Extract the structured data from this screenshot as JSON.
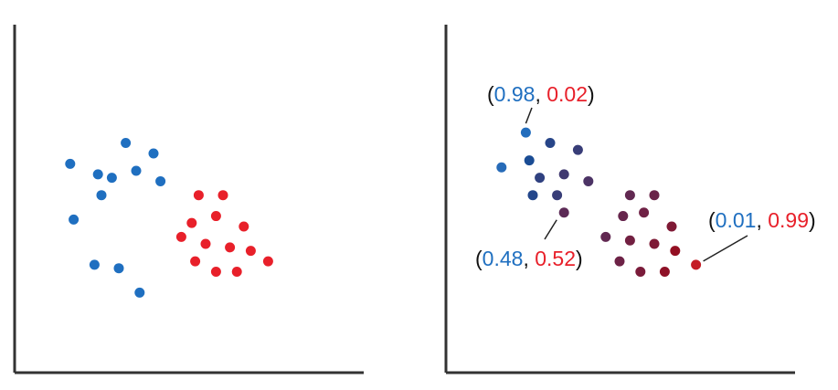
{
  "colors": {
    "blue": "#1f6fc0",
    "red": "#e8202a",
    "axis": "#333333",
    "leader": "#222222"
  },
  "chart_data": [
    {
      "type": "scatter",
      "title": "",
      "xlabel": "",
      "ylabel": "",
      "xlim": [
        0,
        1
      ],
      "ylim": [
        0,
        1
      ],
      "grid": false,
      "series": [
        {
          "color": "#1f6fc0",
          "points": [
            [
              0.17,
              0.44
            ],
            [
              0.23,
              0.31
            ],
            [
              0.3,
              0.3
            ],
            [
              0.36,
              0.23
            ],
            [
              0.24,
              0.57
            ],
            [
              0.32,
              0.66
            ],
            [
              0.4,
              0.63
            ],
            [
              0.16,
              0.6
            ],
            [
              0.28,
              0.56
            ],
            [
              0.35,
              0.58
            ],
            [
              0.42,
              0.55
            ],
            [
              0.25,
              0.51
            ]
          ]
        },
        {
          "color": "#e8202a",
          "points": [
            [
              0.53,
              0.51
            ],
            [
              0.6,
              0.51
            ],
            [
              0.51,
              0.43
            ],
            [
              0.58,
              0.45
            ],
            [
              0.66,
              0.42
            ],
            [
              0.48,
              0.39
            ],
            [
              0.55,
              0.37
            ],
            [
              0.62,
              0.36
            ],
            [
              0.68,
              0.35
            ],
            [
              0.52,
              0.32
            ],
            [
              0.58,
              0.29
            ],
            [
              0.64,
              0.29
            ],
            [
              0.73,
              0.32
            ]
          ]
        }
      ]
    },
    {
      "type": "scatter",
      "title": "",
      "xlabel": "",
      "ylabel": "",
      "xlim": [
        0,
        1
      ],
      "ylim": [
        0,
        1
      ],
      "grid": false,
      "points": [
        {
          "x": 0.23,
          "y": 0.69,
          "pb": 0.98
        },
        {
          "x": 0.3,
          "y": 0.66,
          "pb": 0.8
        },
        {
          "x": 0.38,
          "y": 0.64,
          "pb": 0.7
        },
        {
          "x": 0.16,
          "y": 0.59,
          "pb": 0.95
        },
        {
          "x": 0.24,
          "y": 0.61,
          "pb": 0.88
        },
        {
          "x": 0.27,
          "y": 0.56,
          "pb": 0.75
        },
        {
          "x": 0.34,
          "y": 0.57,
          "pb": 0.65
        },
        {
          "x": 0.41,
          "y": 0.55,
          "pb": 0.58
        },
        {
          "x": 0.25,
          "y": 0.51,
          "pb": 0.82
        },
        {
          "x": 0.32,
          "y": 0.51,
          "pb": 0.7
        },
        {
          "x": 0.34,
          "y": 0.46,
          "pb": 0.48
        },
        {
          "x": 0.53,
          "y": 0.51,
          "pb": 0.45
        },
        {
          "x": 0.6,
          "y": 0.51,
          "pb": 0.4
        },
        {
          "x": 0.51,
          "y": 0.45,
          "pb": 0.42
        },
        {
          "x": 0.57,
          "y": 0.46,
          "pb": 0.37
        },
        {
          "x": 0.65,
          "y": 0.42,
          "pb": 0.27
        },
        {
          "x": 0.46,
          "y": 0.39,
          "pb": 0.45
        },
        {
          "x": 0.53,
          "y": 0.38,
          "pb": 0.35
        },
        {
          "x": 0.6,
          "y": 0.37,
          "pb": 0.28
        },
        {
          "x": 0.66,
          "y": 0.35,
          "pb": 0.15
        },
        {
          "x": 0.5,
          "y": 0.32,
          "pb": 0.38
        },
        {
          "x": 0.56,
          "y": 0.29,
          "pb": 0.3
        },
        {
          "x": 0.63,
          "y": 0.29,
          "pb": 0.18
        },
        {
          "x": 0.72,
          "y": 0.31,
          "pb": 0.01
        }
      ],
      "annotations": [
        {
          "point": 0,
          "blue_text": "0.98",
          "red_text": "0.02"
        },
        {
          "point": 10,
          "blue_text": "0.48",
          "red_text": "0.52"
        },
        {
          "point": 23,
          "blue_text": "0.01",
          "red_text": "0.99"
        }
      ]
    }
  ]
}
